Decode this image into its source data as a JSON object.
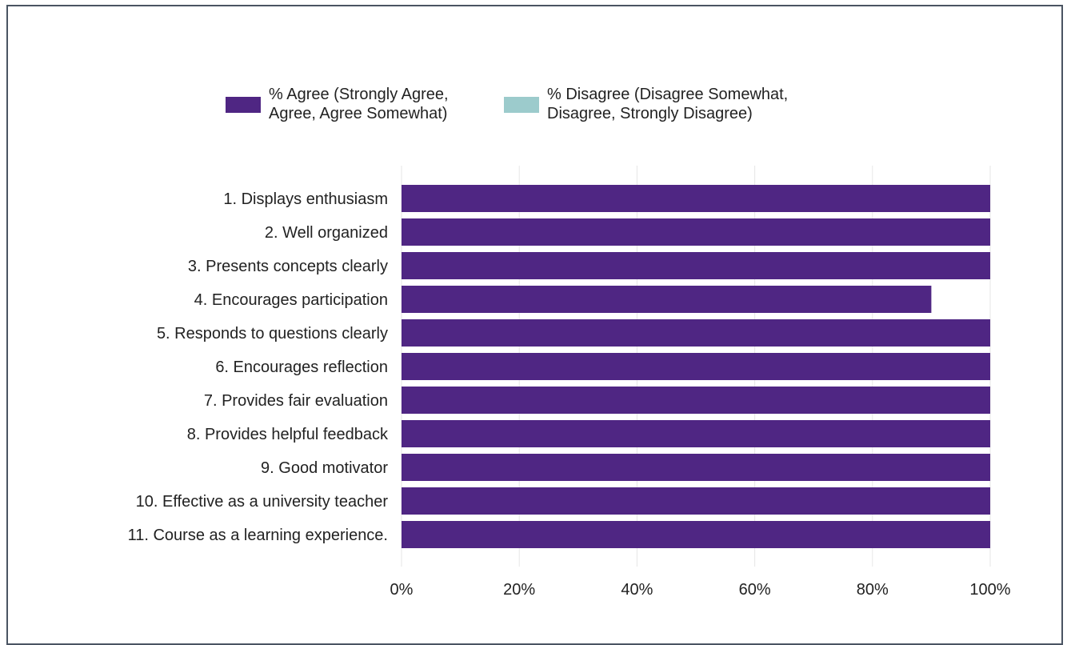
{
  "chart_data": {
    "type": "bar",
    "orientation": "horizontal",
    "stacked": true,
    "categories": [
      "1. Displays enthusiasm",
      "2. Well organized",
      "3. Presents concepts clearly",
      "4. Encourages participation",
      "5. Responds to questions clearly",
      "6. Encourages reflection",
      "7. Provides fair evaluation",
      "8. Provides helpful feedback",
      "9. Good motivator",
      "10. Effective as a university teacher",
      "11. Course as a learning experience."
    ],
    "series": [
      {
        "name": "% Agree (Strongly Agree, Agree, Agree Somewhat)",
        "name_lines": [
          "% Agree (Strongly Agree,",
          "Agree, Agree Somewhat)"
        ],
        "color": "#4f2683",
        "values": [
          100,
          100,
          100,
          90,
          100,
          100,
          100,
          100,
          100,
          100,
          100
        ]
      },
      {
        "name": "% Disagree (Disagree Somewhat, Disagree, Strongly Disagree)",
        "name_lines": [
          "% Disagree (Disagree Somewhat,",
          "Disagree, Strongly Disagree)"
        ],
        "color": "#9ccbcc",
        "values": [
          0,
          0,
          0,
          0,
          0,
          0,
          0,
          0,
          0,
          0,
          0
        ]
      }
    ],
    "xlim": [
      0,
      100
    ],
    "xticks": [
      0,
      20,
      40,
      60,
      80,
      100
    ],
    "xtick_labels": [
      "0%",
      "20%",
      "40%",
      "60%",
      "80%",
      "100%"
    ],
    "grid": true,
    "legend_position": "top",
    "gridline_color": "#e6e6e6",
    "border_color": "#4a5462"
  }
}
